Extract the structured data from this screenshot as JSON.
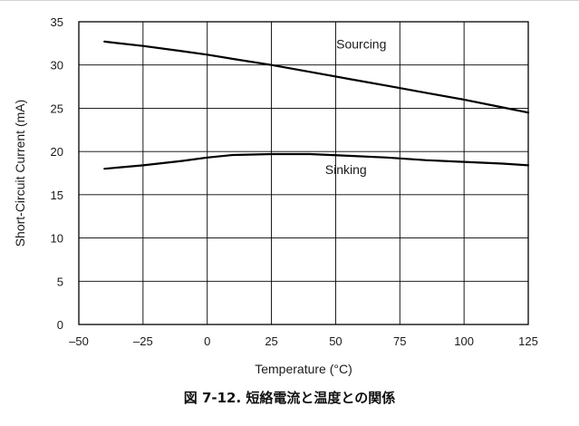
{
  "caption": "図 7-12. 短絡電流と温度との関係",
  "chart_data": {
    "type": "line",
    "title": "",
    "xlabel": "Temperature (°C)",
    "ylabel": "Short-Circuit Current (mA)",
    "xlim": [
      -50,
      125
    ],
    "ylim": [
      0,
      35
    ],
    "x_ticks": [
      -50,
      -25,
      0,
      25,
      50,
      75,
      100,
      125
    ],
    "x_tick_labels": [
      "–50",
      "–25",
      "0",
      "25",
      "50",
      "75",
      "100",
      "125"
    ],
    "y_ticks": [
      0,
      5,
      10,
      15,
      20,
      25,
      30,
      35
    ],
    "y_tick_labels": [
      "0",
      "5",
      "10",
      "15",
      "20",
      "25",
      "30",
      "35"
    ],
    "grid": true,
    "legend": "none",
    "series": [
      {
        "name": "Sourcing",
        "x": [
          -40,
          -25,
          -10,
          0,
          10,
          25,
          40,
          55,
          70,
          85,
          100,
          115,
          125
        ],
        "y": [
          32.7,
          32.2,
          31.6,
          31.2,
          30.7,
          30.0,
          29.2,
          28.4,
          27.6,
          26.8,
          26.0,
          25.1,
          24.5
        ]
      },
      {
        "name": "Sinking",
        "x": [
          -40,
          -25,
          -10,
          0,
          10,
          25,
          40,
          55,
          70,
          85,
          100,
          115,
          125
        ],
        "y": [
          18.0,
          18.4,
          18.9,
          19.3,
          19.6,
          19.7,
          19.7,
          19.5,
          19.3,
          19.0,
          18.8,
          18.6,
          18.4
        ]
      }
    ],
    "annotations": [
      {
        "text": "Sourcing",
        "x": 60,
        "y": 31.9
      },
      {
        "text": "Sinking",
        "x": 54,
        "y": 17.4
      }
    ]
  }
}
